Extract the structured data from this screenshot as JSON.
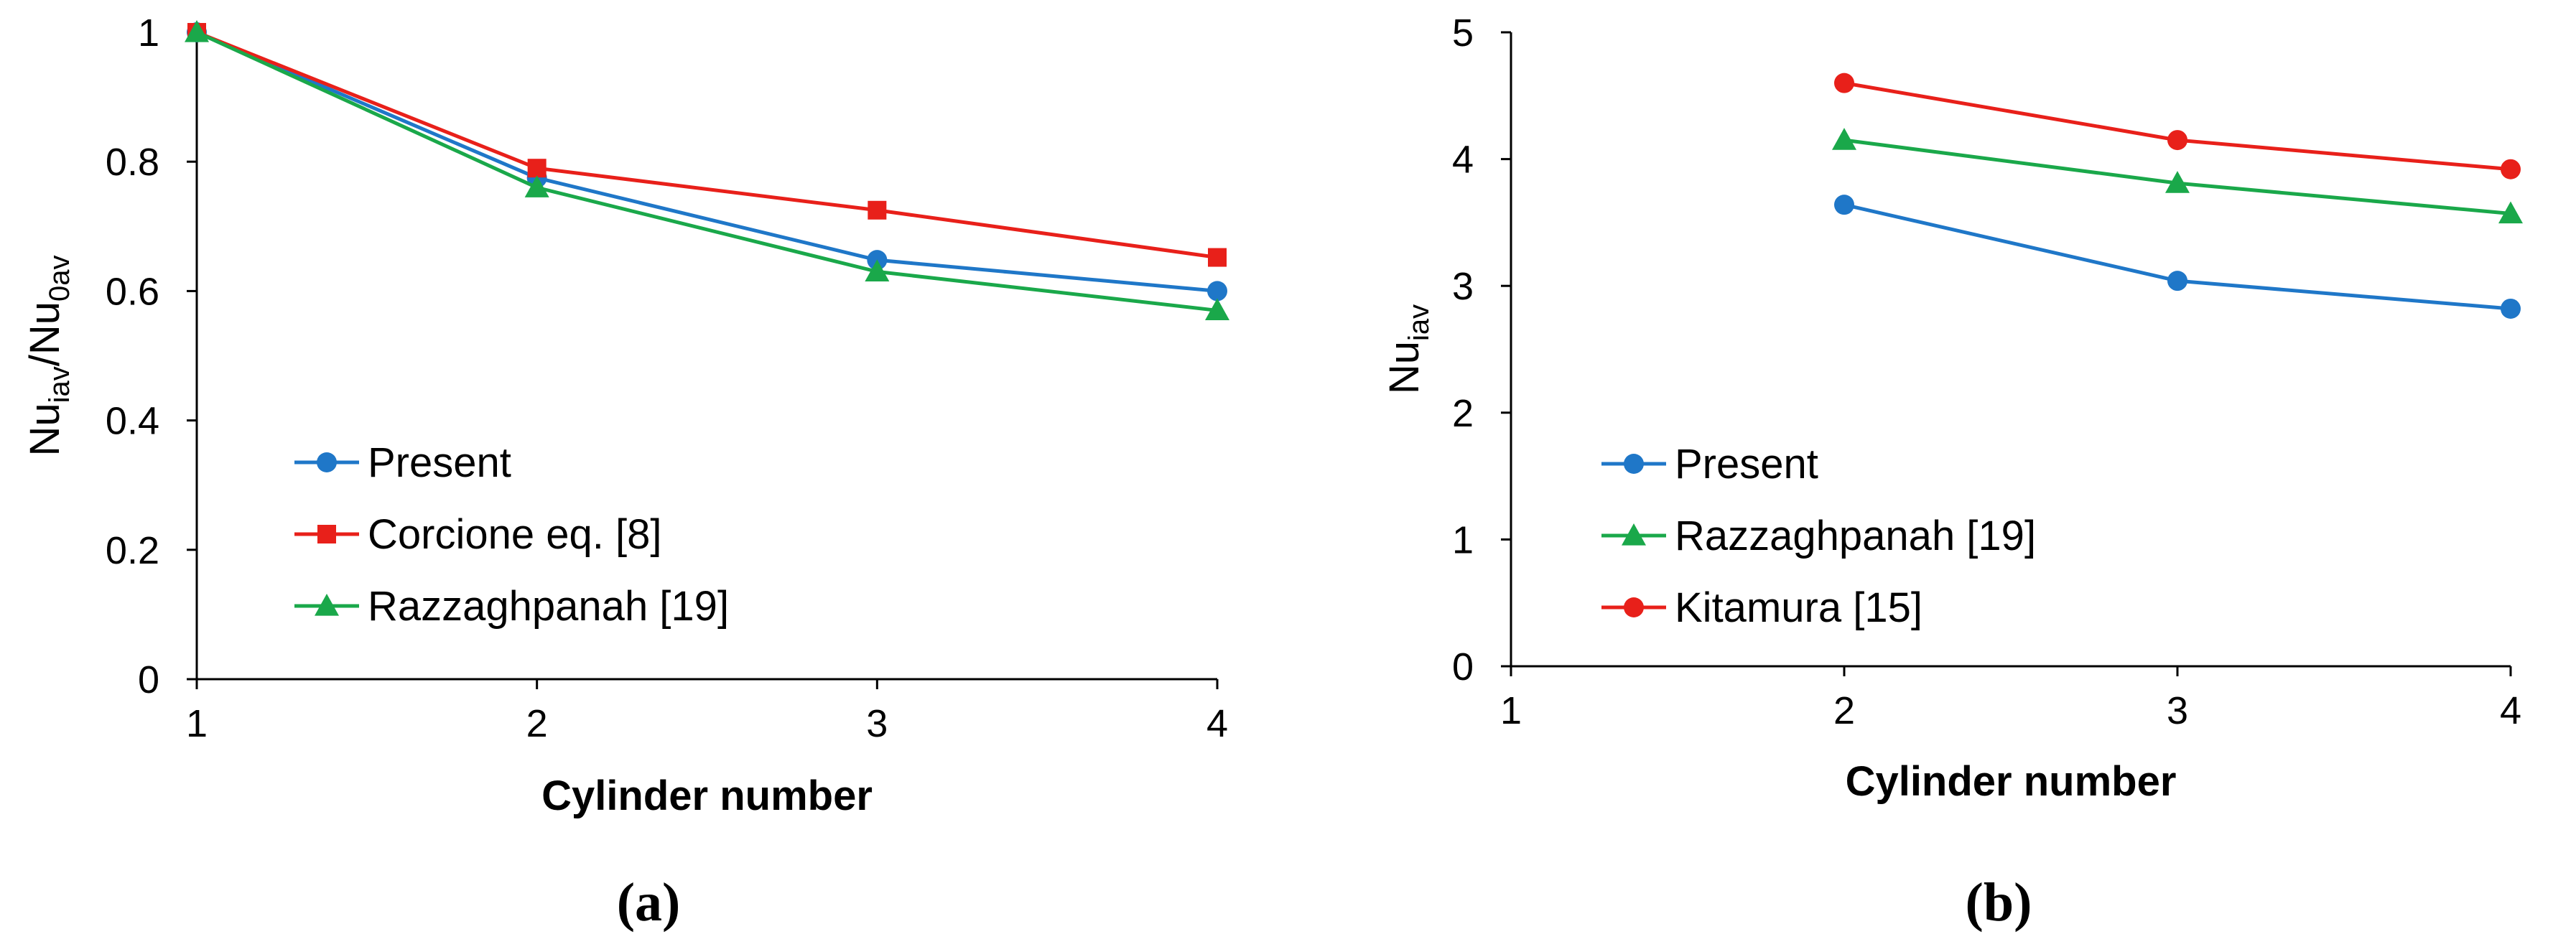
{
  "chart_data": [
    {
      "type": "line",
      "panel_label": "(a)",
      "title": "",
      "xlabel": "Cylinder number",
      "ylabel": {
        "base": "Nu",
        "sub": "iav",
        "sep": "/",
        "base2": "Nu",
        "sub2": "0av"
      },
      "x": [
        1,
        2,
        3,
        4
      ],
      "xlim": [
        1,
        4
      ],
      "ylim": [
        0,
        1
      ],
      "xticks": [
        "1",
        "2",
        "3",
        "4"
      ],
      "yticks": [
        "0",
        "0.2",
        "0.4",
        "0.6",
        "0.8",
        "1"
      ],
      "grid": false,
      "legend_position": "lower-left",
      "series": [
        {
          "name": "Present",
          "color": "#1f77c8",
          "marker": "circle",
          "x": [
            1,
            2,
            3,
            4
          ],
          "values": [
            1.0,
            0.775,
            0.648,
            0.6
          ]
        },
        {
          "name": "Corcione eq. [8]",
          "color": "#e8201a",
          "marker": "square",
          "x": [
            1,
            2,
            3,
            4
          ],
          "values": [
            1.0,
            0.79,
            0.725,
            0.652
          ]
        },
        {
          "name": "Razzaghpanah [19]",
          "color": "#1aa84a",
          "marker": "triangle",
          "x": [
            1,
            2,
            3,
            4
          ],
          "values": [
            1.0,
            0.76,
            0.63,
            0.57
          ]
        }
      ]
    },
    {
      "type": "line",
      "panel_label": "(b)",
      "title": "",
      "xlabel": "Cylinder number",
      "ylabel": {
        "base": "Nu",
        "sub": "iav"
      },
      "x": [
        1,
        2,
        3,
        4
      ],
      "xlim": [
        1,
        4
      ],
      "ylim": [
        0,
        5
      ],
      "xticks": [
        "1",
        "2",
        "3",
        "4"
      ],
      "yticks": [
        "0",
        "1",
        "2",
        "3",
        "4",
        "5"
      ],
      "grid": false,
      "legend_position": "lower-left",
      "series": [
        {
          "name": "Present",
          "color": "#1f77c8",
          "marker": "circle",
          "x": [
            2,
            3,
            4
          ],
          "values": [
            3.64,
            3.04,
            2.82
          ]
        },
        {
          "name": "Razzaghpanah [19]",
          "color": "#1aa84a",
          "marker": "triangle",
          "x": [
            2,
            3,
            4
          ],
          "values": [
            4.15,
            3.81,
            3.57
          ]
        },
        {
          "name": "Kitamura [15]",
          "color": "#e8201a",
          "marker": "circle",
          "x": [
            2,
            3,
            4
          ],
          "values": [
            4.6,
            4.15,
            3.92
          ]
        }
      ]
    }
  ]
}
